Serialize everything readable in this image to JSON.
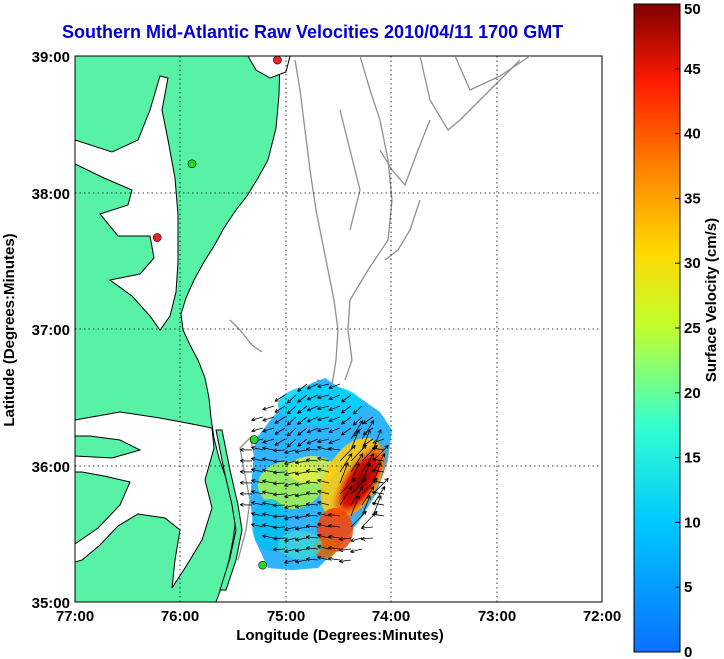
{
  "title": "Southern Mid-Atlantic Raw Velocities 2010/04/11 1700 GMT",
  "axes": {
    "xlabel": "Longitude (Degrees:Minutes)",
    "ylabel": "Latitude (Degrees:Minutes)",
    "x_ticks": [
      "77:00",
      "76:00",
      "75:00",
      "74:00",
      "73:00",
      "72:00"
    ],
    "y_ticks": [
      "39:00",
      "38:00",
      "37:00",
      "36:00",
      "35:00"
    ],
    "xlim": [
      -77,
      -72
    ],
    "ylim": [
      35,
      39
    ],
    "grid": true
  },
  "colorbar": {
    "label": "Surface Velocity (cm/s)",
    "ticks": [
      "50",
      "45",
      "40",
      "35",
      "30",
      "25",
      "20",
      "15",
      "10",
      "5",
      "0"
    ],
    "range": [
      0,
      50
    ],
    "colormap": "jet"
  },
  "colors": {
    "land": "#57f2a6",
    "coastline": "#000000",
    "bathymetry": "#909090",
    "title": "#0000d0",
    "station_green": "#22dd22",
    "station_red": "#ee2222"
  },
  "stations": [
    {
      "lon": -75.08,
      "lat": 38.97,
      "status": "red"
    },
    {
      "lon": -75.89,
      "lat": 38.21,
      "status": "green"
    },
    {
      "lon": -76.22,
      "lat": 37.67,
      "status": "red"
    },
    {
      "lon": -75.3,
      "lat": 36.19,
      "status": "green"
    },
    {
      "lon": -75.22,
      "lat": 35.27,
      "status": "green"
    }
  ]
}
